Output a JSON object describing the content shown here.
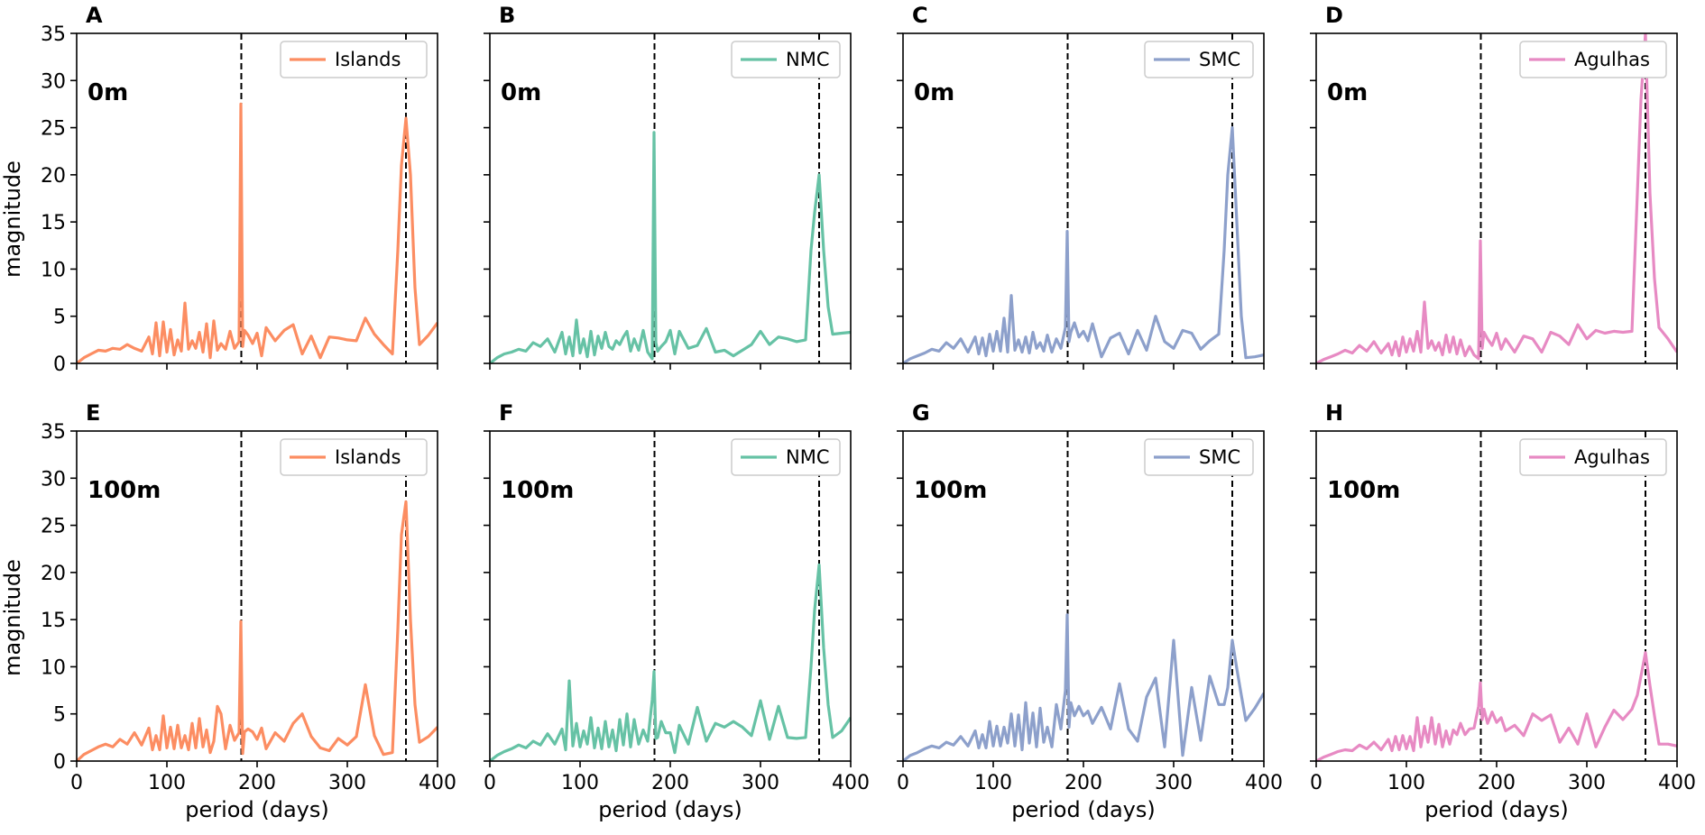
{
  "figure": {
    "xlabel": "period (days)",
    "ylabel": "magnitude"
  },
  "colors": {
    "Islands": "#fc8d62",
    "NMC": "#66c2a5",
    "SMC": "#8da0cb",
    "Agulhas": "#e78ac3"
  },
  "chart_data": [
    {
      "panel": "A",
      "type": "line",
      "depth": "0m",
      "legend": "Islands",
      "color": "#fc8d62",
      "xlim": [
        0,
        400
      ],
      "ylim": [
        0,
        35
      ],
      "xticks": [
        0,
        100,
        200,
        300,
        400
      ],
      "yticks": [
        0,
        5,
        10,
        15,
        20,
        25,
        30,
        35
      ],
      "vlines": [
        182.5,
        365
      ],
      "x": [
        0,
        8,
        16,
        24,
        32,
        40,
        48,
        56,
        64,
        72,
        80,
        84,
        88,
        92,
        96,
        100,
        104,
        108,
        112,
        116,
        120,
        124,
        128,
        132,
        136,
        140,
        144,
        148,
        152,
        156,
        160,
        165,
        170,
        175,
        180,
        182,
        184,
        186,
        190,
        195,
        200,
        205,
        210,
        220,
        230,
        240,
        250,
        260,
        270,
        280,
        290,
        300,
        310,
        320,
        330,
        340,
        350,
        356,
        360,
        365,
        370,
        375,
        380,
        390,
        400
      ],
      "y": [
        0,
        0.6,
        1.0,
        1.4,
        1.3,
        1.6,
        1.5,
        2.0,
        1.6,
        1.3,
        2.8,
        1.0,
        4.3,
        0.8,
        4.4,
        1.2,
        3.6,
        0.9,
        2.5,
        1.3,
        6.4,
        1.5,
        2.4,
        1.6,
        3.3,
        1.2,
        4.2,
        0.6,
        4.5,
        1.4,
        2.1,
        1.5,
        3.4,
        1.6,
        2.3,
        27.5,
        1.8,
        3.5,
        3.0,
        2.1,
        3.2,
        0.8,
        3.8,
        2.4,
        3.5,
        4.1,
        1.0,
        2.9,
        0.6,
        2.8,
        2.7,
        2.5,
        2.4,
        4.8,
        3.1,
        2.0,
        1.0,
        12.0,
        21.0,
        26.0,
        20.0,
        8.0,
        2.0,
        3.0,
        4.3
      ]
    },
    {
      "panel": "B",
      "type": "line",
      "depth": "0m",
      "legend": "NMC",
      "color": "#66c2a5",
      "xlim": [
        0,
        400
      ],
      "ylim": [
        0,
        35
      ],
      "xticks": [
        0,
        100,
        200,
        300,
        400
      ],
      "yticks": [
        0,
        5,
        10,
        15,
        20,
        25,
        30,
        35
      ],
      "vlines": [
        182.5,
        365
      ],
      "x": [
        0,
        8,
        16,
        24,
        32,
        40,
        48,
        56,
        64,
        72,
        80,
        84,
        88,
        92,
        96,
        100,
        104,
        108,
        112,
        116,
        120,
        124,
        128,
        132,
        136,
        140,
        144,
        148,
        152,
        156,
        160,
        165,
        170,
        175,
        180,
        182,
        184,
        186,
        190,
        195,
        200,
        205,
        210,
        220,
        230,
        240,
        250,
        260,
        270,
        280,
        290,
        300,
        310,
        320,
        330,
        340,
        350,
        356,
        360,
        365,
        370,
        375,
        380,
        390,
        400
      ],
      "y": [
        0,
        0.6,
        1.0,
        1.2,
        1.5,
        1.3,
        2.2,
        1.8,
        2.6,
        1.2,
        3.3,
        1.0,
        2.8,
        0.8,
        4.6,
        1.1,
        2.6,
        0.7,
        3.4,
        0.9,
        2.9,
        1.6,
        3.3,
        1.8,
        1.5,
        2.4,
        2.0,
        2.8,
        3.4,
        1.3,
        2.6,
        1.4,
        3.5,
        1.2,
        0.5,
        24.5,
        2.2,
        1.3,
        1.8,
        2.3,
        3.5,
        1.0,
        3.4,
        1.6,
        1.9,
        3.7,
        1.2,
        1.4,
        0.8,
        1.4,
        2.0,
        3.4,
        2.0,
        2.8,
        2.6,
        2.3,
        2.5,
        12.0,
        16.0,
        20.0,
        12.0,
        6.0,
        3.1,
        3.2,
        3.3
      ]
    },
    {
      "panel": "C",
      "type": "line",
      "depth": "0m",
      "legend": "SMC",
      "color": "#8da0cb",
      "xlim": [
        0,
        400
      ],
      "ylim": [
        0,
        35
      ],
      "xticks": [
        0,
        100,
        200,
        300,
        400
      ],
      "yticks": [
        0,
        5,
        10,
        15,
        20,
        25,
        30,
        35
      ],
      "vlines": [
        182.5,
        365
      ],
      "x": [
        0,
        8,
        16,
        24,
        32,
        40,
        48,
        56,
        64,
        72,
        80,
        84,
        88,
        92,
        96,
        100,
        104,
        108,
        112,
        116,
        120,
        124,
        128,
        132,
        136,
        140,
        144,
        148,
        152,
        156,
        160,
        165,
        170,
        175,
        180,
        182,
        184,
        186,
        190,
        195,
        200,
        205,
        210,
        220,
        230,
        240,
        250,
        260,
        270,
        280,
        290,
        300,
        310,
        320,
        330,
        340,
        350,
        356,
        360,
        365,
        370,
        375,
        380,
        390,
        400
      ],
      "y": [
        0,
        0.5,
        0.8,
        1.1,
        1.5,
        1.3,
        2.2,
        1.6,
        2.6,
        1.2,
        2.8,
        1.0,
        2.7,
        0.8,
        3.1,
        1.3,
        3.4,
        1.3,
        4.8,
        1.2,
        7.2,
        1.4,
        2.5,
        1.2,
        2.8,
        1.1,
        3.3,
        1.6,
        2.2,
        1.3,
        3.0,
        1.2,
        2.6,
        1.6,
        3.8,
        14.0,
        2.3,
        3.3,
        4.3,
        2.8,
        3.4,
        2.4,
        4.2,
        0.7,
        2.7,
        3.2,
        1.0,
        3.5,
        1.4,
        5.0,
        2.3,
        1.6,
        3.5,
        3.2,
        1.5,
        2.4,
        3.1,
        12.0,
        20.0,
        25.0,
        15.0,
        5.0,
        0.6,
        0.7,
        0.9
      ]
    },
    {
      "panel": "D",
      "type": "line",
      "depth": "0m",
      "legend": "Agulhas",
      "color": "#e78ac3",
      "xlim": [
        0,
        400
      ],
      "ylim": [
        0,
        35
      ],
      "xticks": [
        0,
        100,
        200,
        300,
        400
      ],
      "yticks": [
        0,
        5,
        10,
        15,
        20,
        25,
        30,
        35
      ],
      "vlines": [
        182.5,
        365
      ],
      "x": [
        0,
        8,
        16,
        24,
        32,
        40,
        48,
        56,
        64,
        72,
        80,
        84,
        88,
        92,
        96,
        100,
        104,
        108,
        112,
        116,
        120,
        124,
        128,
        132,
        136,
        140,
        144,
        148,
        152,
        156,
        160,
        165,
        170,
        175,
        180,
        182,
        184,
        186,
        190,
        195,
        200,
        205,
        210,
        220,
        230,
        240,
        250,
        260,
        270,
        280,
        290,
        300,
        310,
        320,
        330,
        340,
        350,
        356,
        360,
        365,
        370,
        375,
        380,
        390,
        400
      ],
      "y": [
        0,
        0.4,
        0.7,
        1.0,
        1.4,
        1.1,
        1.9,
        1.3,
        2.3,
        1.1,
        2.1,
        0.9,
        2.3,
        0.8,
        2.8,
        1.2,
        2.6,
        1.3,
        3.4,
        1.2,
        6.5,
        1.6,
        2.4,
        1.4,
        2.2,
        0.9,
        3.0,
        1.2,
        2.8,
        1.0,
        2.5,
        0.8,
        1.8,
        0.9,
        0.5,
        13.0,
        1.6,
        3.3,
        2.6,
        1.9,
        3.2,
        1.5,
        2.6,
        1.2,
        2.9,
        2.6,
        1.2,
        3.3,
        2.9,
        2.0,
        4.1,
        2.6,
        3.5,
        3.2,
        3.4,
        3.3,
        3.4,
        18.0,
        28.0,
        35.0,
        18.0,
        9.0,
        3.8,
        2.6,
        1.2
      ]
    },
    {
      "panel": "E",
      "type": "line",
      "depth": "100m",
      "legend": "Islands",
      "color": "#fc8d62",
      "xlim": [
        0,
        400
      ],
      "ylim": [
        0,
        35
      ],
      "xticks": [
        0,
        100,
        200,
        300,
        400
      ],
      "yticks": [
        0,
        5,
        10,
        15,
        20,
        25,
        30,
        35
      ],
      "vlines": [
        182.5,
        365
      ],
      "x": [
        0,
        8,
        16,
        24,
        32,
        40,
        48,
        56,
        64,
        72,
        80,
        84,
        88,
        92,
        96,
        100,
        104,
        108,
        112,
        116,
        120,
        124,
        128,
        132,
        136,
        140,
        144,
        148,
        152,
        156,
        160,
        165,
        170,
        175,
        180,
        182,
        184,
        186,
        190,
        195,
        200,
        205,
        210,
        220,
        230,
        240,
        250,
        260,
        270,
        280,
        290,
        300,
        310,
        320,
        330,
        340,
        350,
        356,
        360,
        365,
        370,
        375,
        380,
        390,
        400
      ],
      "y": [
        0,
        0.7,
        1.1,
        1.5,
        1.8,
        1.5,
        2.3,
        1.8,
        3.0,
        1.7,
        3.5,
        1.2,
        2.7,
        1.2,
        4.8,
        1.4,
        3.6,
        1.3,
        3.8,
        1.4,
        2.7,
        1.2,
        4.0,
        1.4,
        4.5,
        1.5,
        3.3,
        0.9,
        2.1,
        5.8,
        5.0,
        1.3,
        3.8,
        2.2,
        3.0,
        14.8,
        0.8,
        3.1,
        3.4,
        3.1,
        2.3,
        3.5,
        1.3,
        3.0,
        2.1,
        4.0,
        5.0,
        2.6,
        1.4,
        1.1,
        2.4,
        1.7,
        2.6,
        8.1,
        2.7,
        0.7,
        0.9,
        14.0,
        24.0,
        27.5,
        15.0,
        6.0,
        2.0,
        2.6,
        3.6
      ]
    },
    {
      "panel": "F",
      "type": "line",
      "depth": "100m",
      "legend": "NMC",
      "color": "#66c2a5",
      "xlim": [
        0,
        400
      ],
      "ylim": [
        0,
        35
      ],
      "xticks": [
        0,
        100,
        200,
        300,
        400
      ],
      "yticks": [
        0,
        5,
        10,
        15,
        20,
        25,
        30,
        35
      ],
      "vlines": [
        182.5,
        365
      ],
      "x": [
        0,
        8,
        16,
        24,
        32,
        40,
        48,
        56,
        64,
        72,
        80,
        84,
        88,
        92,
        96,
        100,
        104,
        108,
        112,
        116,
        120,
        124,
        128,
        132,
        136,
        140,
        144,
        148,
        152,
        156,
        160,
        165,
        170,
        175,
        180,
        182,
        184,
        186,
        190,
        195,
        200,
        205,
        210,
        220,
        230,
        240,
        250,
        260,
        270,
        280,
        290,
        300,
        310,
        320,
        330,
        340,
        350,
        356,
        360,
        365,
        370,
        375,
        380,
        390,
        400
      ],
      "y": [
        0,
        0.6,
        1.0,
        1.3,
        1.7,
        1.4,
        2.1,
        1.7,
        2.9,
        1.8,
        3.4,
        1.2,
        8.5,
        1.6,
        4.0,
        1.5,
        3.2,
        1.8,
        4.6,
        1.4,
        3.5,
        1.3,
        4.2,
        1.5,
        3.3,
        1.1,
        4.4,
        1.7,
        5.0,
        1.5,
        4.4,
        1.8,
        3.3,
        2.1,
        6.5,
        9.5,
        2.4,
        2.5,
        4.2,
        3.0,
        3.0,
        0.9,
        3.8,
        1.8,
        5.7,
        2.1,
        4.0,
        3.6,
        4.2,
        3.6,
        2.7,
        6.4,
        2.3,
        5.8,
        2.5,
        2.4,
        2.5,
        10.0,
        16.0,
        20.8,
        12.0,
        6.0,
        2.5,
        3.2,
        4.6
      ]
    },
    {
      "panel": "G",
      "type": "line",
      "depth": "100m",
      "legend": "SMC",
      "color": "#8da0cb",
      "xlim": [
        0,
        400
      ],
      "ylim": [
        0,
        35
      ],
      "xticks": [
        0,
        100,
        200,
        300,
        400
      ],
      "yticks": [
        0,
        5,
        10,
        15,
        20,
        25,
        30,
        35
      ],
      "vlines": [
        182.5,
        365
      ],
      "x": [
        0,
        8,
        16,
        24,
        32,
        40,
        48,
        56,
        64,
        72,
        80,
        84,
        88,
        92,
        96,
        100,
        104,
        108,
        112,
        116,
        120,
        124,
        128,
        132,
        136,
        140,
        144,
        148,
        152,
        156,
        160,
        165,
        170,
        175,
        180,
        182,
        184,
        186,
        190,
        195,
        200,
        205,
        210,
        220,
        230,
        240,
        250,
        260,
        270,
        280,
        290,
        300,
        310,
        320,
        330,
        340,
        350,
        356,
        360,
        365,
        370,
        375,
        380,
        390,
        400
      ],
      "y": [
        0,
        0.6,
        0.9,
        1.3,
        1.6,
        1.4,
        2.0,
        1.7,
        2.6,
        1.6,
        3.2,
        1.4,
        2.8,
        1.4,
        4.2,
        1.6,
        3.7,
        1.6,
        3.6,
        1.9,
        5.0,
        1.6,
        4.9,
        1.2,
        6.2,
        1.9,
        5.1,
        1.5,
        5.6,
        2.0,
        3.6,
        1.5,
        6.0,
        3.4,
        7.5,
        15.5,
        3.6,
        6.2,
        4.8,
        5.8,
        4.8,
        5.3,
        4.0,
        5.7,
        3.4,
        8.2,
        3.4,
        2.1,
        6.8,
        8.8,
        1.5,
        12.8,
        0.6,
        7.8,
        2.2,
        9.0,
        6.0,
        6.0,
        7.8,
        12.8,
        9.8,
        7.0,
        4.3,
        5.6,
        7.2
      ]
    },
    {
      "panel": "H",
      "type": "line",
      "depth": "100m",
      "legend": "Agulhas",
      "color": "#e78ac3",
      "xlim": [
        0,
        400
      ],
      "ylim": [
        0,
        35
      ],
      "xticks": [
        0,
        100,
        200,
        300,
        400
      ],
      "yticks": [
        0,
        5,
        10,
        15,
        20,
        25,
        30,
        35
      ],
      "vlines": [
        182.5,
        365
      ],
      "x": [
        0,
        8,
        16,
        24,
        32,
        40,
        48,
        56,
        64,
        72,
        80,
        84,
        88,
        92,
        96,
        100,
        104,
        108,
        112,
        116,
        120,
        124,
        128,
        132,
        136,
        140,
        144,
        148,
        152,
        156,
        160,
        165,
        170,
        175,
        180,
        182,
        184,
        186,
        190,
        195,
        200,
        205,
        210,
        220,
        230,
        240,
        250,
        260,
        270,
        280,
        290,
        300,
        310,
        320,
        330,
        340,
        350,
        356,
        360,
        365,
        370,
        375,
        380,
        390,
        400
      ],
      "y": [
        0,
        0.4,
        0.7,
        1.0,
        1.2,
        1.1,
        1.7,
        1.3,
        2.0,
        1.2,
        2.3,
        1.1,
        2.6,
        1.2,
        2.7,
        1.3,
        2.6,
        1.1,
        4.6,
        1.5,
        3.7,
        2.0,
        4.6,
        1.8,
        3.9,
        1.5,
        3.2,
        1.8,
        3.3,
        2.8,
        4.0,
        2.8,
        3.4,
        3.5,
        5.8,
        8.3,
        4.4,
        5.5,
        4.0,
        5.2,
        4.1,
        4.6,
        3.2,
        3.8,
        2.7,
        5.0,
        4.3,
        4.9,
        2.0,
        3.5,
        1.8,
        5.0,
        1.5,
        3.6,
        5.4,
        4.4,
        5.5,
        7.0,
        9.0,
        11.5,
        8.0,
        4.8,
        1.8,
        1.8,
        1.6
      ]
    }
  ]
}
